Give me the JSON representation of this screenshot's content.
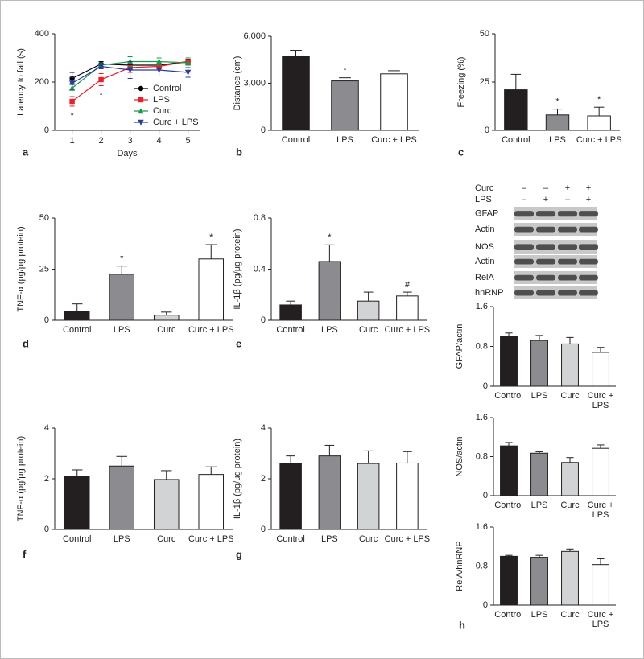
{
  "chart_data": [
    {
      "type": "line",
      "panel_label": "a",
      "y_label": "Latency to fall (s)",
      "x_label": "Days",
      "x": [
        1,
        2,
        3,
        4,
        5
      ],
      "xlim": [
        0.4,
        5.4
      ],
      "xticks": [
        1,
        2,
        3,
        4,
        5
      ],
      "ylim": [
        0,
        400
      ],
      "yticks": [
        0,
        200,
        400
      ],
      "series": [
        {
          "name": "Control",
          "color": "#000000",
          "marker": "circle",
          "values": [
            215,
            275,
            270,
            270,
            285
          ],
          "errors": [
            25,
            10,
            15,
            15,
            10
          ]
        },
        {
          "name": "LPS",
          "color": "#e8202a",
          "marker": "square",
          "values": [
            120,
            210,
            260,
            265,
            285
          ],
          "errors": [
            20,
            25,
            20,
            15,
            15
          ]
        },
        {
          "name": "Curc",
          "color": "#1a9850",
          "marker": "triangle",
          "values": [
            175,
            270,
            285,
            285,
            280
          ],
          "errors": [
            20,
            10,
            20,
            15,
            20
          ]
        },
        {
          "name": "Curc + LPS",
          "color": "#2b3a9c",
          "marker": "triangle-down",
          "values": [
            195,
            265,
            250,
            250,
            240
          ],
          "errors": [
            25,
            10,
            35,
            25,
            20
          ]
        }
      ],
      "annotations": [
        {
          "text": "*",
          "x": 1,
          "series": "LPS"
        },
        {
          "text": "*",
          "x": 2,
          "series": "LPS"
        }
      ]
    },
    {
      "type": "bar",
      "panel_label": "b",
      "y_label": "Distance (cm)",
      "categories": [
        "Control",
        "LPS",
        "Curc + LPS"
      ],
      "values": [
        4700,
        3150,
        3600
      ],
      "errors": [
        400,
        200,
        200
      ],
      "colors": [
        "#231f20",
        "#8c8c90",
        "#ffffff"
      ],
      "ylim": [
        0,
        6000
      ],
      "yticks": [
        0,
        {
          "value": 3000,
          "label": "3,000"
        },
        {
          "value": 6000,
          "label": "6,000"
        }
      ],
      "annotations": [
        {
          "text": "*",
          "category": "LPS"
        }
      ]
    },
    {
      "type": "bar",
      "panel_label": "c",
      "y_label": "Freezing (%)",
      "categories": [
        "Control",
        "LPS",
        "Curc + LPS"
      ],
      "values": [
        21,
        8,
        7.5
      ],
      "errors": [
        8,
        3,
        4.5
      ],
      "colors": [
        "#231f20",
        "#8c8c90",
        "#ffffff"
      ],
      "ylim": [
        0,
        50
      ],
      "yticks": [
        0,
        25,
        50
      ],
      "annotations": [
        {
          "text": "*",
          "category": "LPS"
        },
        {
          "text": "*",
          "category": "Curc + LPS"
        }
      ]
    },
    {
      "type": "bar",
      "panel_label": "d",
      "y_label": "TNF-α (pg/μg protein)",
      "categories": [
        "Control",
        "LPS",
        "Curc",
        "Curc + LPS"
      ],
      "values": [
        4.5,
        22.5,
        2.5,
        30
      ],
      "errors": [
        3.5,
        4,
        1.5,
        7
      ],
      "colors": [
        "#231f20",
        "#8c8c90",
        "#d1d3d4",
        "#ffffff"
      ],
      "ylim": [
        0,
        50
      ],
      "yticks": [
        0,
        25,
        50
      ],
      "annotations": [
        {
          "text": "*",
          "category": "LPS"
        },
        {
          "text": "*",
          "category": "Curc + LPS"
        }
      ]
    },
    {
      "type": "bar",
      "panel_label": "e",
      "y_label": "IL-1β (pg/μg protein)",
      "categories": [
        "Control",
        "LPS",
        "Curc",
        "Curc + LPS"
      ],
      "values": [
        0.12,
        0.46,
        0.15,
        0.19
      ],
      "errors": [
        0.03,
        0.13,
        0.07,
        0.03
      ],
      "colors": [
        "#231f20",
        "#8c8c90",
        "#d1d3d4",
        "#ffffff"
      ],
      "ylim": [
        0,
        0.8
      ],
      "yticks": [
        0,
        0.4,
        0.8
      ],
      "annotations": [
        {
          "text": "*",
          "category": "LPS"
        },
        {
          "text": "#",
          "category": "Curc + LPS"
        }
      ]
    },
    {
      "type": "bar",
      "panel_label": "f",
      "y_label": "TNF-α (pg/μg protein)",
      "categories": [
        "Control",
        "LPS",
        "Curc",
        "Curc + LPS"
      ],
      "values": [
        2.1,
        2.5,
        1.97,
        2.17
      ],
      "errors": [
        0.25,
        0.38,
        0.35,
        0.3
      ],
      "colors": [
        "#231f20",
        "#8c8c90",
        "#d1d3d4",
        "#ffffff"
      ],
      "ylim": [
        0,
        4
      ],
      "yticks": [
        0,
        2,
        4
      ]
    },
    {
      "type": "bar",
      "panel_label": "g",
      "y_label": "IL-1β (pg/μg protein)",
      "categories": [
        "Control",
        "LPS",
        "Curc",
        "Curc + LPS"
      ],
      "values": [
        2.6,
        2.9,
        2.6,
        2.62
      ],
      "errors": [
        0.3,
        0.42,
        0.5,
        0.45
      ],
      "colors": [
        "#231f20",
        "#8c8c90",
        "#d1d3d4",
        "#ffffff"
      ],
      "ylim": [
        0,
        4
      ],
      "yticks": [
        0,
        2,
        4
      ]
    },
    {
      "type": "bar",
      "y_label": "GFAP/actin",
      "categories": [
        "Control",
        "LPS",
        "Curc",
        "Curc + LPS"
      ],
      "values": [
        1.0,
        0.92,
        0.85,
        0.68
      ],
      "errors": [
        0.07,
        0.1,
        0.13,
        0.1
      ],
      "colors": [
        "#231f20",
        "#8c8c90",
        "#d1d3d4",
        "#ffffff"
      ],
      "ylim": [
        0,
        1.6
      ],
      "yticks": [
        0,
        0.8,
        1.6
      ]
    },
    {
      "type": "bar",
      "y_label": "NOS/actin",
      "categories": [
        "Control",
        "LPS",
        "Curc",
        "Curc + LPS"
      ],
      "values": [
        1.02,
        0.87,
        0.68,
        0.97
      ],
      "errors": [
        0.07,
        0.03,
        0.1,
        0.07
      ],
      "colors": [
        "#231f20",
        "#8c8c90",
        "#d1d3d4",
        "#ffffff"
      ],
      "ylim": [
        0,
        1.6
      ],
      "yticks": [
        0,
        0.8,
        1.6
      ]
    },
    {
      "type": "bar",
      "panel_label": "h",
      "y_label": "RelA/hnRNP",
      "categories": [
        "Control",
        "LPS",
        "Curc",
        "Curc + LPS"
      ],
      "values": [
        1.0,
        0.98,
        1.1,
        0.83
      ],
      "errors": [
        0.02,
        0.04,
        0.05,
        0.12
      ],
      "colors": [
        "#231f20",
        "#8c8c90",
        "#d1d3d4",
        "#ffffff"
      ],
      "ylim": [
        0,
        1.6
      ],
      "yticks": [
        0,
        0.8,
        1.6
      ]
    }
  ],
  "blot": {
    "treatments": [
      {
        "label": "Curc",
        "signs": [
          "–",
          "–",
          "+",
          "+"
        ]
      },
      {
        "label": "LPS",
        "signs": [
          "–",
          "+",
          "–",
          "+"
        ]
      }
    ],
    "bands": [
      "GFAP",
      "Actin",
      "NOS",
      "Actin",
      "RelA",
      "hnRNP"
    ]
  }
}
